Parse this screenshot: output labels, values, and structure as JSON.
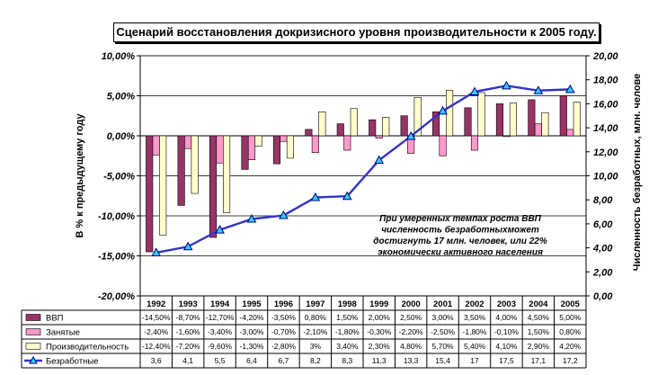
{
  "chart_data": {
    "type": "bar",
    "title": "Сценарий восстановления докризисного уровня производительности к 2005 году.",
    "categories": [
      "1992",
      "1993",
      "1994",
      "1995",
      "1996",
      "1997",
      "1998",
      "1999",
      "2000",
      "2001",
      "2002",
      "2003",
      "2004",
      "2005"
    ],
    "ylabel": "В % к предыдущему году",
    "y2label": "Численность безработных, млн. челове",
    "ylim": [
      -20,
      10
    ],
    "y2lim": [
      0,
      20
    ],
    "yticks": [
      "10,00%",
      "5,00%",
      "0,00%",
      "-5,00%",
      "-10,00%",
      "-15,00%",
      "-20,00%"
    ],
    "y2ticks": [
      "20,00",
      "18,00",
      "16,00",
      "14,00",
      "12,00",
      "10,00",
      "8,00",
      "6,00",
      "4,00",
      "2,00",
      "0,00"
    ],
    "grid": true,
    "series": [
      {
        "name": "ВВП",
        "kind": "bar",
        "color": "#993366",
        "values": [
          -14.5,
          -8.7,
          -12.7,
          -4.2,
          -3.5,
          0.8,
          1.5,
          2.0,
          2.5,
          3.0,
          3.5,
          4.0,
          4.5,
          5.0
        ],
        "labels": [
          "-14,50%",
          "-8,70%",
          "-12,70%",
          "-4,20%",
          "-3,50%",
          "0,80%",
          "1,50%",
          "2,00%",
          "2,50%",
          "3,00%",
          "3,50%",
          "4,00%",
          "4,50%",
          "5,00%"
        ]
      },
      {
        "name": "Занятые",
        "kind": "bar",
        "color": "#ff99cc",
        "values": [
          -2.4,
          -1.6,
          -3.4,
          -3.0,
          -0.7,
          -2.1,
          -1.8,
          -0.3,
          -2.2,
          -2.5,
          -1.8,
          -0.1,
          1.5,
          0.8
        ],
        "labels": [
          "-2,40%",
          "-1,60%",
          "-3,40%",
          "-3,00%",
          "-0,70%",
          "-2,10%",
          "-1,80%",
          "-0,30%",
          "-2,20%",
          "-2,50%",
          "-1,80%",
          "-0,10%",
          "1,50%",
          "0,80%"
        ]
      },
      {
        "name": "Производительность",
        "kind": "bar",
        "color": "#ffffcc",
        "values": [
          -12.4,
          -7.2,
          -9.6,
          -1.3,
          -2.8,
          3.0,
          3.4,
          2.3,
          4.8,
          5.7,
          5.4,
          4.1,
          2.9,
          4.2
        ],
        "labels": [
          "-12,40%",
          "-7,20%",
          "-9,60%",
          "-1,30%",
          "-2,80%",
          "3%",
          "3,40%",
          "2,30%",
          "4,80%",
          "5,70%",
          "5,40%",
          "4,10%",
          "2,90%",
          "4,20%"
        ]
      },
      {
        "name": "Безработные",
        "kind": "line",
        "axis": "right",
        "color": "#3333cc",
        "marker": "#33ccff",
        "values": [
          3.6,
          4.1,
          5.5,
          6.4,
          6.7,
          8.2,
          8.3,
          11.3,
          13.3,
          15.4,
          17,
          17.5,
          17.1,
          17.2
        ],
        "labels": [
          "3,6",
          "4,1",
          "5,5",
          "6,4",
          "6,7",
          "8,2",
          "8,3",
          "11,3",
          "13,3",
          "15,4",
          "17",
          "17,5",
          "17,1",
          "17,2"
        ]
      }
    ],
    "annotation": [
      "При умеренных темпах роста ВВП",
      "численность безработныхможет",
      "достигнуть 17 млн. человек, или 22%",
      "экономически активного населения"
    ]
  }
}
